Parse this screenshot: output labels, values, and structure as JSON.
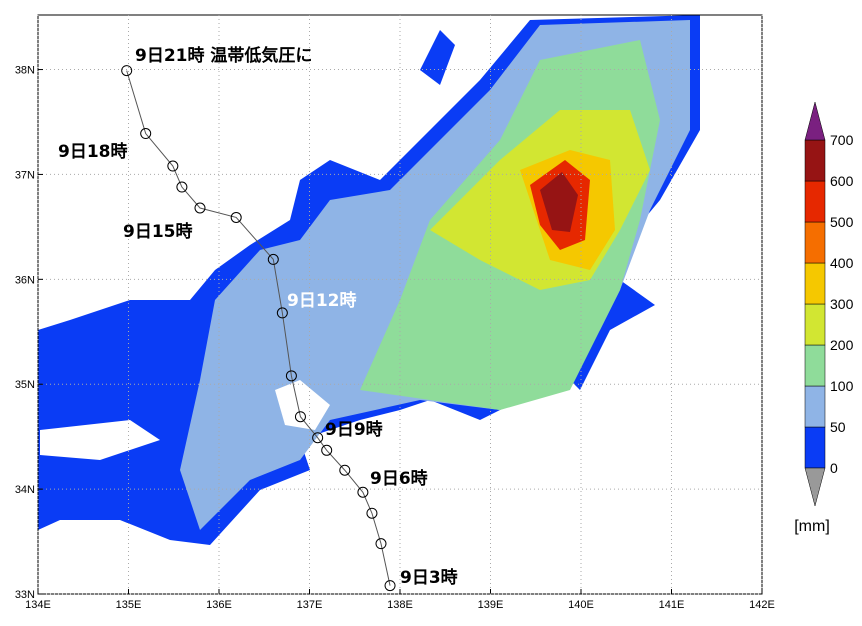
{
  "map": {
    "xlim": [
      134,
      142
    ],
    "ylim": [
      33,
      38.52
    ],
    "xticks": [
      {
        "value": 134,
        "label": "134E"
      },
      {
        "value": 135,
        "label": "135E"
      },
      {
        "value": 136,
        "label": "136E"
      },
      {
        "value": 137,
        "label": "137E"
      },
      {
        "value": 138,
        "label": "138E"
      },
      {
        "value": 139,
        "label": "139E"
      },
      {
        "value": 140,
        "label": "140E"
      },
      {
        "value": 141,
        "label": "141E"
      },
      {
        "value": 142,
        "label": "142E"
      }
    ],
    "yticks": [
      {
        "value": 33,
        "label": "33N"
      },
      {
        "value": 34,
        "label": "34N"
      },
      {
        "value": 35,
        "label": "35N"
      },
      {
        "value": 36,
        "label": "36N"
      },
      {
        "value": 37,
        "label": "37N"
      },
      {
        "value": 38,
        "label": "38N"
      }
    ],
    "grid": true,
    "track": {
      "lon": [
        137.89,
        137.79,
        137.69,
        137.59,
        137.39,
        137.19,
        137.09,
        136.9,
        136.8,
        136.7,
        136.6,
        136.19,
        135.79,
        135.59,
        135.49,
        135.19,
        134.98
      ],
      "lat": [
        33.08,
        33.48,
        33.77,
        33.97,
        34.18,
        34.37,
        34.49,
        34.69,
        35.08,
        35.68,
        36.19,
        36.59,
        36.68,
        36.88,
        37.08,
        37.39,
        37.99
      ],
      "labels": [
        "9日3時",
        "9日6時",
        "9日9時",
        "9日12時",
        "9日15時",
        "9日18時",
        "9日21時 温帯低気圧に"
      ]
    },
    "colorbar": {
      "levels": [
        0,
        50,
        100,
        200,
        300,
        400,
        500,
        600,
        700
      ],
      "colors": [
        "#0a3cf5",
        "#8fb4e6",
        "#8fdc9a",
        "#d2e632",
        "#f5c800",
        "#f56e00",
        "#e62800",
        "#961414"
      ],
      "over_color": "#7a2080",
      "under_color": "#999999",
      "unit": "[mm]"
    }
  }
}
